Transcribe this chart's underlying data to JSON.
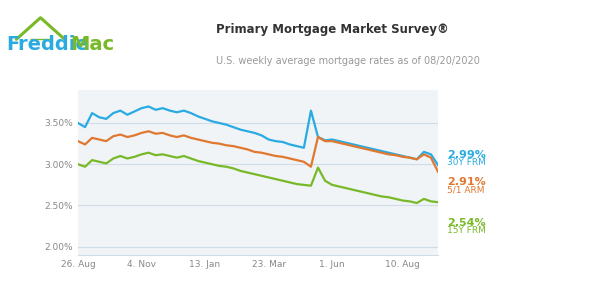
{
  "title": "Primary Mortgage Market Survey®",
  "subtitle": "U.S. weekly average mortgage rates as of 08/20/2020",
  "bg_color": "#ffffff",
  "plot_bg_color": "#f0f4f7",
  "grid_color": "#d0dce6",
  "x_tick_labels": [
    "26. Aug",
    "4. Nov",
    "13. Jan",
    "23. Mar",
    "1. Jun",
    "10. Aug"
  ],
  "y_lim": [
    1.9,
    3.9
  ],
  "blue_color": "#29abe2",
  "orange_color": "#e07830",
  "green_color": "#78b928",
  "freddie_blue": "#29abe2",
  "freddie_green": "#78b928",
  "label_30y": "2.99%",
  "label_30y_sub": "30Y FRM",
  "label_51": "2.91%",
  "label_51_sub": "5/1 ARM",
  "label_15y": "2.54%",
  "label_15y_sub": "15Y FRM",
  "n_points": 52,
  "y_30y": [
    3.5,
    3.45,
    3.62,
    3.57,
    3.55,
    3.62,
    3.65,
    3.6,
    3.64,
    3.68,
    3.7,
    3.66,
    3.68,
    3.65,
    3.63,
    3.65,
    3.62,
    3.58,
    3.55,
    3.52,
    3.5,
    3.48,
    3.45,
    3.42,
    3.4,
    3.38,
    3.35,
    3.3,
    3.28,
    3.27,
    3.24,
    3.22,
    3.2,
    3.65,
    3.33,
    3.29,
    3.3,
    3.28,
    3.26,
    3.24,
    3.22,
    3.2,
    3.18,
    3.16,
    3.14,
    3.12,
    3.1,
    3.08,
    3.06,
    3.15,
    3.12,
    2.99
  ],
  "y_51": [
    3.28,
    3.24,
    3.32,
    3.3,
    3.28,
    3.34,
    3.36,
    3.33,
    3.35,
    3.38,
    3.4,
    3.37,
    3.38,
    3.35,
    3.33,
    3.35,
    3.32,
    3.3,
    3.28,
    3.26,
    3.25,
    3.23,
    3.22,
    3.2,
    3.18,
    3.15,
    3.14,
    3.12,
    3.1,
    3.09,
    3.07,
    3.05,
    3.03,
    2.97,
    3.33,
    3.28,
    3.28,
    3.26,
    3.24,
    3.22,
    3.2,
    3.18,
    3.16,
    3.14,
    3.12,
    3.11,
    3.09,
    3.08,
    3.06,
    3.12,
    3.08,
    2.91
  ],
  "y_15y": [
    3.0,
    2.97,
    3.05,
    3.03,
    3.01,
    3.07,
    3.1,
    3.07,
    3.09,
    3.12,
    3.14,
    3.11,
    3.12,
    3.1,
    3.08,
    3.1,
    3.07,
    3.04,
    3.02,
    3.0,
    2.98,
    2.97,
    2.95,
    2.92,
    2.9,
    2.88,
    2.86,
    2.84,
    2.82,
    2.8,
    2.78,
    2.76,
    2.75,
    2.74,
    2.96,
    2.8,
    2.75,
    2.73,
    2.71,
    2.69,
    2.67,
    2.65,
    2.63,
    2.61,
    2.6,
    2.58,
    2.56,
    2.55,
    2.53,
    2.58,
    2.55,
    2.54
  ],
  "x_tick_positions": [
    0,
    9,
    18,
    27,
    36,
    46
  ],
  "y_tick_vals": [
    2.0,
    2.5,
    3.0,
    3.5
  ]
}
